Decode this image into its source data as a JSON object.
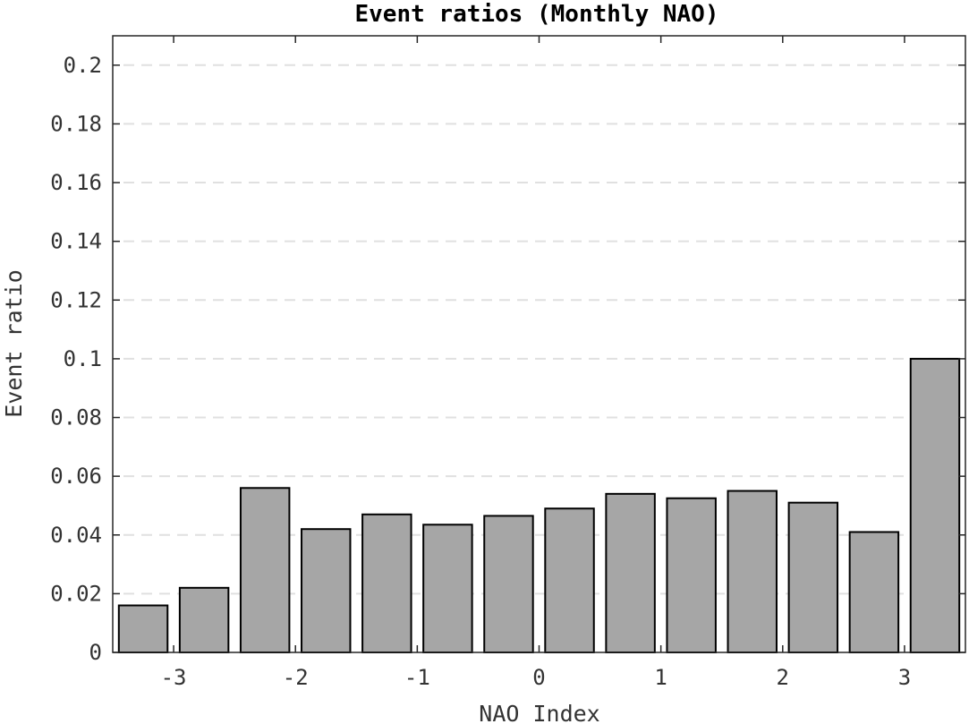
{
  "chart_data": {
    "type": "bar",
    "title": "Event ratios (Monthly NAO)",
    "xlabel": "NAO Index",
    "ylabel": "Event ratio",
    "x": [
      -3.25,
      -2.75,
      -2.25,
      -1.75,
      -1.25,
      -0.75,
      -0.25,
      0.25,
      0.75,
      1.25,
      1.75,
      2.25,
      2.75,
      3.25
    ],
    "values": [
      0.016,
      0.022,
      0.056,
      0.042,
      0.047,
      0.0435,
      0.0465,
      0.049,
      0.054,
      0.0525,
      0.055,
      0.051,
      0.041,
      0.1
    ],
    "bar_width": 0.4,
    "xlim": [
      -3.5,
      3.5
    ],
    "ylim": [
      0,
      0.21
    ],
    "xticks": [
      -3,
      -2,
      -1,
      0,
      1,
      2,
      3
    ],
    "xtick_labels": [
      "-3",
      "-2",
      "-1",
      "0",
      "1",
      "2",
      "3"
    ],
    "yticks": [
      0,
      0.02,
      0.04,
      0.06,
      0.08,
      0.1,
      0.12,
      0.14,
      0.16,
      0.18,
      0.2
    ],
    "ytick_labels": [
      "0",
      "0.02",
      "0.04",
      "0.06",
      "0.08",
      "0.1",
      "0.12",
      "0.14",
      "0.16",
      "0.18",
      "0.2"
    ],
    "grid": "horizontal dashed",
    "colors": {
      "bar_fill": "#a6a6a6",
      "bar_edge": "#000000",
      "grid": "#e0e0e0",
      "axes": "#262626"
    }
  }
}
